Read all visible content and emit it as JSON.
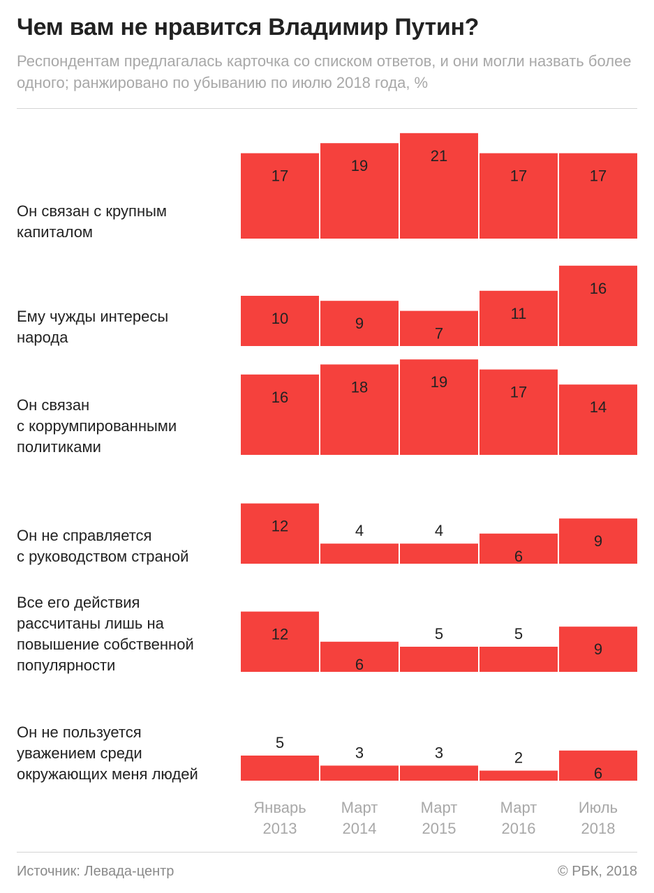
{
  "title": "Чем вам не нравится Владимир Путин?",
  "subtitle": "Респондентам предлагалась карточка со списком ответов, и они могли назвать более одного; ранжировано по убыванию по июлю 2018 года, %",
  "source": "Источник: Левада-центр",
  "copyright": "© РБК, 2018",
  "colors": {
    "bar": "#f5413d",
    "value_text": "#222222",
    "title": "#222222",
    "muted": "#a8a8a8"
  },
  "chart_data": {
    "type": "bar",
    "categories": [
      "Январь\n2013",
      "Март\n2014",
      "Март\n2015",
      "Март\n2016",
      "Июль\n2018"
    ],
    "unit": "%",
    "rows": [
      {
        "label": "Он связан с крупным\nкапиталом",
        "values": [
          17,
          19,
          21,
          17,
          17
        ]
      },
      {
        "label": "Ему чужды интересы\nнарода",
        "values": [
          10,
          9,
          7,
          11,
          16
        ]
      },
      {
        "label": "Он связан\nс коррумпированными\nполитиками",
        "values": [
          16,
          18,
          19,
          17,
          14
        ]
      },
      {
        "label": "Он не справляется\nс руководством страной",
        "values": [
          12,
          4,
          4,
          6,
          9
        ]
      },
      {
        "label": "Все его действия\nрассчитаны лишь на\nповышение собственной\nпопулярности",
        "values": [
          12,
          6,
          5,
          5,
          9
        ]
      },
      {
        "label": "Он не пользуется\nуважением среди\nокружающих меня людей",
        "values": [
          5,
          3,
          3,
          2,
          6
        ]
      }
    ]
  }
}
